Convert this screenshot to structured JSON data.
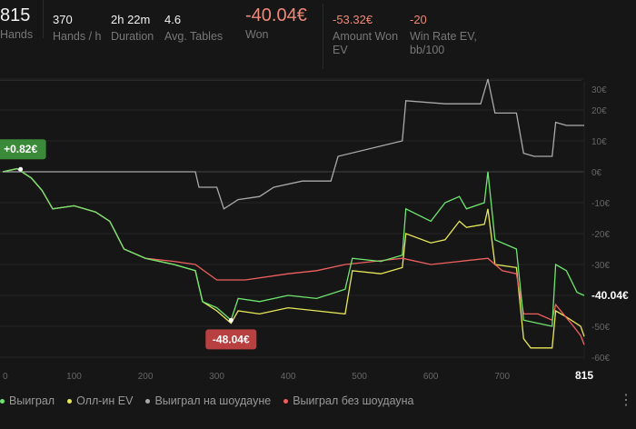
{
  "header": {
    "hands": {
      "value": "815",
      "label": "Hands"
    },
    "hands_per_hour": {
      "value": "370",
      "label": "Hands / h"
    },
    "duration": {
      "value": "2h 22m",
      "label": "Duration"
    },
    "avg_tables": {
      "value": "4.6",
      "label": "Avg. Tables"
    },
    "won": {
      "value": "-40.04€",
      "label": "Won"
    },
    "amount_won_ev": {
      "value": "-53.32€",
      "label": "Amount Won EV"
    },
    "win_rate_ev": {
      "value": "-20",
      "label": "Win Rate EV, bb/100"
    }
  },
  "chart_data": {
    "type": "line",
    "xlim": [
      0,
      815
    ],
    "ylim": [
      -60,
      30
    ],
    "x_ticks": [
      "0",
      "100",
      "200",
      "300",
      "400",
      "500",
      "600",
      "700"
    ],
    "x_end_label": "815",
    "y_ticks": [
      "30€",
      "20€",
      "10€",
      "0€",
      "-10€",
      "-20€",
      "-30€",
      "-50€",
      "-60€"
    ],
    "end_label": "-40.04€",
    "annotations": [
      {
        "text": "+0.82€",
        "x": 25,
        "y": 0.82,
        "color": "#3a8a3a"
      },
      {
        "text": "-48.04€",
        "x": 320,
        "y": -48.04,
        "color": "#b84040"
      }
    ],
    "series": [
      {
        "name": "Выиграл",
        "color": "#6ee66e",
        "points": [
          [
            0,
            0
          ],
          [
            20,
            1
          ],
          [
            40,
            -2
          ],
          [
            55,
            -6
          ],
          [
            70,
            -12
          ],
          [
            100,
            -11
          ],
          [
            130,
            -13
          ],
          [
            150,
            -16
          ],
          [
            170,
            -25
          ],
          [
            200,
            -28
          ],
          [
            240,
            -30
          ],
          [
            270,
            -32
          ],
          [
            280,
            -42
          ],
          [
            300,
            -44
          ],
          [
            320,
            -48
          ],
          [
            330,
            -41
          ],
          [
            360,
            -42
          ],
          [
            400,
            -40
          ],
          [
            440,
            -41
          ],
          [
            480,
            -38
          ],
          [
            490,
            -28
          ],
          [
            530,
            -29
          ],
          [
            560,
            -27
          ],
          [
            565,
            -12
          ],
          [
            600,
            -16
          ],
          [
            620,
            -10
          ],
          [
            640,
            -8
          ],
          [
            650,
            -12
          ],
          [
            675,
            -10
          ],
          [
            680,
            0
          ],
          [
            690,
            -22
          ],
          [
            720,
            -25
          ],
          [
            730,
            -48
          ],
          [
            750,
            -49
          ],
          [
            770,
            -50
          ],
          [
            775,
            -30
          ],
          [
            790,
            -32
          ],
          [
            805,
            -39
          ],
          [
            815,
            -40.04
          ]
        ]
      },
      {
        "name": "Олл-ин EV",
        "color": "#e8e85a",
        "points": [
          [
            0,
            0
          ],
          [
            20,
            1
          ],
          [
            40,
            -2
          ],
          [
            55,
            -6
          ],
          [
            70,
            -12
          ],
          [
            100,
            -11
          ],
          [
            130,
            -13
          ],
          [
            150,
            -16
          ],
          [
            170,
            -25
          ],
          [
            200,
            -28
          ],
          [
            240,
            -30
          ],
          [
            270,
            -32
          ],
          [
            280,
            -42
          ],
          [
            300,
            -45
          ],
          [
            320,
            -49
          ],
          [
            330,
            -45
          ],
          [
            360,
            -46
          ],
          [
            400,
            -44
          ],
          [
            440,
            -45
          ],
          [
            480,
            -46
          ],
          [
            490,
            -32
          ],
          [
            530,
            -33
          ],
          [
            560,
            -31
          ],
          [
            565,
            -20
          ],
          [
            600,
            -23
          ],
          [
            620,
            -22
          ],
          [
            640,
            -16
          ],
          [
            650,
            -18
          ],
          [
            675,
            -17
          ],
          [
            680,
            -12
          ],
          [
            690,
            -30
          ],
          [
            720,
            -31
          ],
          [
            730,
            -54
          ],
          [
            740,
            -57
          ],
          [
            770,
            -57
          ],
          [
            775,
            -45
          ],
          [
            790,
            -47
          ],
          [
            810,
            -50
          ],
          [
            815,
            -53.32
          ]
        ]
      },
      {
        "name": "Выиграл на шоудауне",
        "color": "#aaaaaa",
        "points": [
          [
            0,
            0
          ],
          [
            270,
            0
          ],
          [
            275,
            -5
          ],
          [
            300,
            -5
          ],
          [
            310,
            -12
          ],
          [
            330,
            -9
          ],
          [
            360,
            -8
          ],
          [
            380,
            -5
          ],
          [
            420,
            -3
          ],
          [
            460,
            -3
          ],
          [
            470,
            5
          ],
          [
            560,
            10
          ],
          [
            565,
            23
          ],
          [
            620,
            22
          ],
          [
            670,
            22
          ],
          [
            680,
            30
          ],
          [
            690,
            19
          ],
          [
            720,
            19
          ],
          [
            730,
            6
          ],
          [
            745,
            5
          ],
          [
            770,
            5
          ],
          [
            775,
            16
          ],
          [
            790,
            15
          ],
          [
            815,
            15
          ]
        ]
      },
      {
        "name": "Выиграл без шоудауна",
        "color": "#f06060",
        "points": [
          [
            0,
            0
          ],
          [
            20,
            1
          ],
          [
            40,
            -2
          ],
          [
            55,
            -6
          ],
          [
            70,
            -12
          ],
          [
            100,
            -11
          ],
          [
            130,
            -13
          ],
          [
            150,
            -16
          ],
          [
            170,
            -25
          ],
          [
            200,
            -28
          ],
          [
            240,
            -29
          ],
          [
            270,
            -30
          ],
          [
            300,
            -35
          ],
          [
            340,
            -35
          ],
          [
            400,
            -33
          ],
          [
            440,
            -32
          ],
          [
            480,
            -30
          ],
          [
            520,
            -29
          ],
          [
            560,
            -28
          ],
          [
            600,
            -30
          ],
          [
            640,
            -29
          ],
          [
            680,
            -28
          ],
          [
            700,
            -32
          ],
          [
            720,
            -33
          ],
          [
            730,
            -46
          ],
          [
            750,
            -46
          ],
          [
            770,
            -48
          ],
          [
            775,
            -43
          ],
          [
            800,
            -50
          ],
          [
            810,
            -53
          ],
          [
            815,
            -56
          ]
        ]
      }
    ]
  },
  "more_icon": "vertical-ellipsis-icon"
}
